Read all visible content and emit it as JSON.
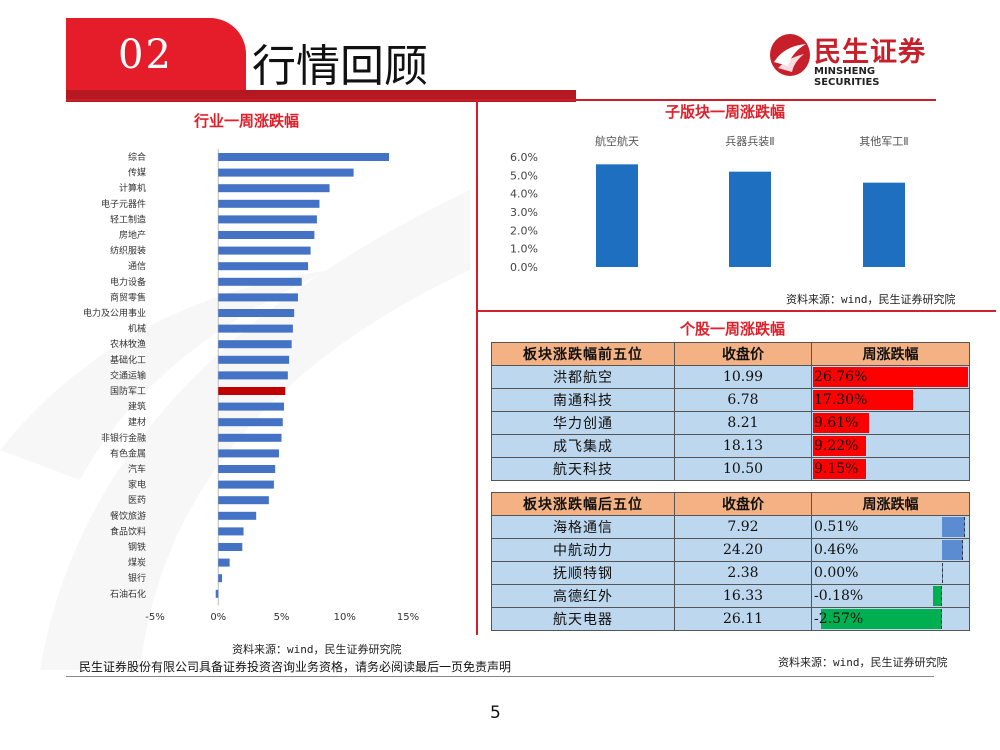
{
  "header": {
    "section_number": "02",
    "title": "行情回顾"
  },
  "logo": {
    "name_cn": "民生证券",
    "name_en": "MINSHENG SECURITIES"
  },
  "colors": {
    "brand_red": "#e51d2a",
    "bar_blue": "#4472c4",
    "highlight_red": "#c00000",
    "table_head": "#f4b183",
    "table_row": "#bdd7ee",
    "up_red": "#ff0000",
    "down_green": "#00b050",
    "bar_column": "#1f6fc0"
  },
  "industry_chart": {
    "title": "行业一周涨跌幅",
    "source": "资料来源：wind，民生证券研究院"
  },
  "subsector_chart": {
    "title": "子版块一周涨跌幅",
    "source": "资料来源：wind，民生证券研究院"
  },
  "stocks": {
    "title": "个股一周涨跌幅",
    "source": "资料来源：wind，民生证券研究院",
    "top_headers": [
      "板块涨跌幅前五位",
      "收盘价",
      "周涨跌幅"
    ],
    "bottom_headers": [
      "板块涨跌幅后五位",
      "收盘价",
      "周涨跌幅"
    ],
    "top": [
      {
        "name": "洪都航空",
        "price": "10.99",
        "change": "26.76%",
        "value": 26.76
      },
      {
        "name": "南通科技",
        "price": "6.78",
        "change": "17.30%",
        "value": 17.3
      },
      {
        "name": "华力创通",
        "price": "8.21",
        "change": "9.61%",
        "value": 9.61
      },
      {
        "name": "成飞集成",
        "price": "18.13",
        "change": "9.22%",
        "value": 9.22
      },
      {
        "name": "航天科技",
        "price": "10.50",
        "change": "9.15%",
        "value": 9.15
      }
    ],
    "bottom": [
      {
        "name": "海格通信",
        "price": "7.92",
        "change": "0.51%",
        "value": 0.51
      },
      {
        "name": "中航动力",
        "price": "24.20",
        "change": "0.46%",
        "value": 0.46
      },
      {
        "name": "抚顺特钢",
        "price": "2.38",
        "change": "0.00%",
        "value": 0.0
      },
      {
        "name": "高德红外",
        "price": "16.33",
        "change": "-0.18%",
        "value": -0.18
      },
      {
        "name": "航天电器",
        "price": "26.11",
        "change": "-2.57%",
        "value": -2.57
      }
    ]
  },
  "footer": {
    "disclaimer": "民生证券股份有限公司具备证券投资咨询业务资格，请务必阅读最后一页免责声明",
    "page": "5"
  },
  "chart_data": [
    {
      "type": "bar",
      "orientation": "horizontal",
      "title": "行业一周涨跌幅",
      "categories": [
        "综合",
        "传媒",
        "计算机",
        "电子元器件",
        "轻工制造",
        "房地产",
        "纺织服装",
        "通信",
        "电力设备",
        "商贸零售",
        "电力及公用事业",
        "机械",
        "农林牧渔",
        "基础化工",
        "交通运输",
        "国防军工",
        "建筑",
        "建材",
        "非银行金融",
        "有色金属",
        "汽车",
        "家电",
        "医药",
        "餐饮旅游",
        "食品饮料",
        "钢铁",
        "煤炭",
        "银行",
        "石油石化"
      ],
      "values": [
        13.5,
        10.7,
        8.8,
        8.0,
        7.8,
        7.6,
        7.3,
        7.1,
        6.6,
        6.3,
        6.0,
        5.9,
        5.8,
        5.6,
        5.5,
        5.3,
        5.2,
        5.1,
        5.0,
        4.8,
        4.5,
        4.4,
        4.0,
        3.0,
        2.0,
        1.9,
        0.9,
        0.3,
        -0.2
      ],
      "highlight": "国防军工",
      "xlim": [
        -5,
        15
      ],
      "xticks": [
        "-5%",
        "0%",
        "5%",
        "10%",
        "15%"
      ]
    },
    {
      "type": "bar",
      "title": "子版块一周涨跌幅",
      "categories": [
        "航空航天",
        "兵器兵装Ⅱ",
        "其他军工Ⅱ"
      ],
      "values": [
        5.6,
        5.2,
        4.6
      ],
      "ylim": [
        0,
        6
      ],
      "yticks": [
        "0.0%",
        "1.0%",
        "2.0%",
        "3.0%",
        "4.0%",
        "5.0%",
        "6.0%"
      ]
    }
  ]
}
